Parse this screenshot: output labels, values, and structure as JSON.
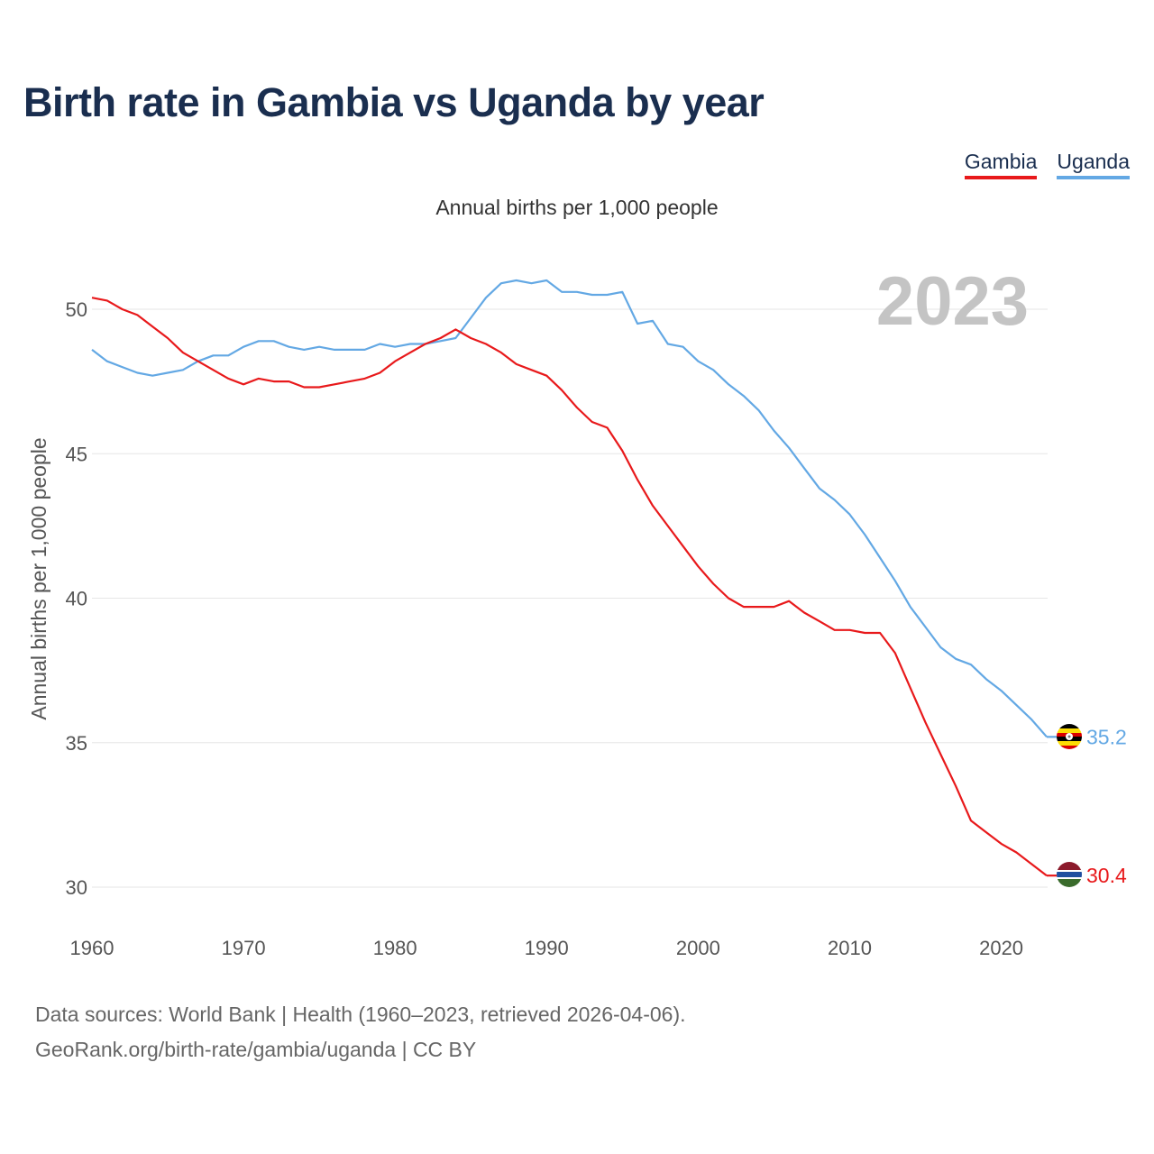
{
  "title": "Birth rate in Gambia vs Uganda by year",
  "legend": [
    {
      "name": "Gambia",
      "color": "#e8191b"
    },
    {
      "name": "Uganda",
      "color": "#63a8e4"
    }
  ],
  "subtitle": "Annual births per 1,000 people",
  "year_watermark": "2023",
  "footer": {
    "source": "Data sources: World Bank | Health (1960–2023, retrieved 2026-04-06).",
    "credit": "GeoRank.org/birth-rate/gambia/uganda | CC BY"
  },
  "chart_data": {
    "type": "line",
    "title": "Birth rate in Gambia vs Uganda by year",
    "xlabel": "",
    "ylabel": "Annual births per 1,000 people",
    "xlim": [
      1960,
      2023
    ],
    "ylim": [
      30,
      52
    ],
    "x_ticks": [
      1960,
      1970,
      1980,
      1990,
      2000,
      2010,
      2020
    ],
    "y_ticks": [
      30,
      35,
      40,
      45,
      50
    ],
    "grid": true,
    "x": [
      1960,
      1961,
      1962,
      1963,
      1964,
      1965,
      1966,
      1967,
      1968,
      1969,
      1970,
      1971,
      1972,
      1973,
      1974,
      1975,
      1976,
      1977,
      1978,
      1979,
      1980,
      1981,
      1982,
      1983,
      1984,
      1985,
      1986,
      1987,
      1988,
      1989,
      1990,
      1991,
      1992,
      1993,
      1994,
      1995,
      1996,
      1997,
      1998,
      1999,
      2000,
      2001,
      2002,
      2003,
      2004,
      2005,
      2006,
      2007,
      2008,
      2009,
      2010,
      2011,
      2012,
      2013,
      2014,
      2015,
      2016,
      2017,
      2018,
      2019,
      2020,
      2021,
      2022,
      2023
    ],
    "series": [
      {
        "name": "Gambia",
        "color": "#e8191b",
        "end_label": "30.4",
        "values": [
          50.4,
          50.3,
          50.0,
          49.8,
          49.4,
          49.0,
          48.5,
          48.2,
          47.9,
          47.6,
          47.4,
          47.6,
          47.5,
          47.5,
          47.3,
          47.3,
          47.4,
          47.5,
          47.6,
          47.8,
          48.2,
          48.5,
          48.8,
          49.0,
          49.3,
          49.0,
          48.8,
          48.5,
          48.1,
          47.9,
          47.7,
          47.2,
          46.6,
          46.1,
          45.9,
          45.1,
          44.1,
          43.2,
          42.5,
          41.8,
          41.1,
          40.5,
          40.0,
          39.7,
          39.7,
          39.7,
          39.9,
          39.5,
          39.2,
          38.9,
          38.9,
          38.8,
          38.8,
          38.1,
          36.9,
          35.7,
          34.6,
          33.5,
          32.3,
          31.9,
          31.5,
          31.2,
          30.8,
          30.4
        ]
      },
      {
        "name": "Uganda",
        "color": "#63a8e4",
        "end_label": "35.2",
        "values": [
          48.6,
          48.2,
          48.0,
          47.8,
          47.7,
          47.8,
          47.9,
          48.2,
          48.4,
          48.4,
          48.7,
          48.9,
          48.9,
          48.7,
          48.6,
          48.7,
          48.6,
          48.6,
          48.6,
          48.8,
          48.7,
          48.8,
          48.8,
          48.9,
          49.0,
          49.7,
          50.4,
          50.9,
          51.0,
          50.9,
          51.0,
          50.6,
          50.6,
          50.5,
          50.5,
          50.6,
          49.5,
          49.6,
          48.8,
          48.7,
          48.2,
          47.9,
          47.4,
          47.0,
          46.5,
          45.8,
          45.2,
          44.5,
          43.8,
          43.4,
          42.9,
          42.2,
          41.4,
          40.6,
          39.7,
          39.0,
          38.3,
          37.9,
          37.7,
          37.2,
          36.8,
          36.3,
          35.8,
          35.2
        ]
      }
    ]
  }
}
